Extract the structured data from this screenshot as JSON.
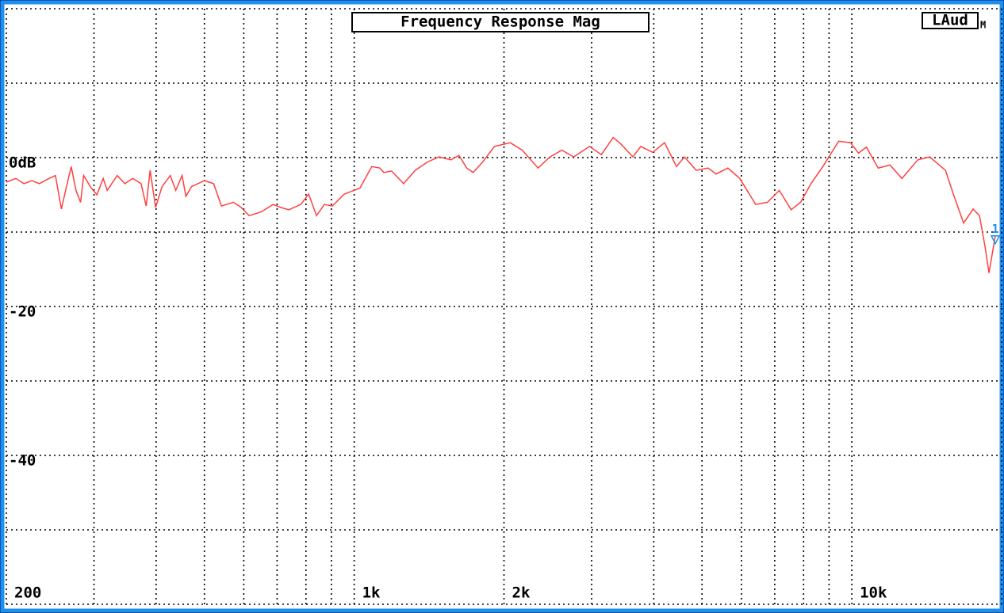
{
  "chart_data": {
    "type": "line",
    "title": "Frequency Response Mag",
    "badge": "LAud",
    "badge_sub": "M",
    "marker_label": "1",
    "xscale": "log",
    "xlim": [
      200,
      20000
    ],
    "ylim": [
      -60,
      20
    ],
    "grid": true,
    "xticks": [
      {
        "value": 200,
        "label": "200"
      },
      {
        "value": 300,
        "label": null
      },
      {
        "value": 400,
        "label": null
      },
      {
        "value": 500,
        "label": null
      },
      {
        "value": 600,
        "label": null
      },
      {
        "value": 700,
        "label": null
      },
      {
        "value": 800,
        "label": null
      },
      {
        "value": 900,
        "label": null
      },
      {
        "value": 1000,
        "label": "1k"
      },
      {
        "value": 2000,
        "label": "2k"
      },
      {
        "value": 3000,
        "label": null
      },
      {
        "value": 4000,
        "label": null
      },
      {
        "value": 5000,
        "label": null
      },
      {
        "value": 6000,
        "label": null
      },
      {
        "value": 7000,
        "label": null
      },
      {
        "value": 8000,
        "label": null
      },
      {
        "value": 9000,
        "label": null
      },
      {
        "value": 10000,
        "label": "10k"
      },
      {
        "value": 20000,
        "label": null
      }
    ],
    "yticks": [
      {
        "value": 20,
        "label": null
      },
      {
        "value": 10,
        "label": null
      },
      {
        "value": 0,
        "label": "0dB"
      },
      {
        "value": -10,
        "label": null
      },
      {
        "value": -20,
        "label": "-20"
      },
      {
        "value": -30,
        "label": null
      },
      {
        "value": -40,
        "label": "-40"
      },
      {
        "value": -50,
        "label": null
      },
      {
        "value": -60,
        "label": null
      }
    ],
    "series": [
      {
        "color": "#ff4040",
        "x": [
          200,
          209,
          217,
          225,
          233,
          242,
          251,
          258,
          265,
          270,
          276,
          282,
          286,
          295,
          304,
          313,
          319,
          334,
          346,
          359,
          373,
          382,
          389,
          399,
          411,
          427,
          438,
          451,
          459,
          471,
          500,
          522,
          541,
          572,
          593,
          615,
          650,
          687,
          713,
          739,
          781,
          810,
          840,
          871,
          904,
          955,
          1027,
          1085,
          1126,
          1147,
          1189,
          1257,
          1327,
          1403,
          1481,
          1565,
          1624,
          1684,
          1734,
          1812,
          1914,
          2059,
          2176,
          2342,
          2474,
          2614,
          2761,
          2970,
          3138,
          3315,
          3438,
          3632,
          3767,
          3980,
          4205,
          4443,
          4608,
          4868,
          5143,
          5335,
          5636,
          5955,
          6409,
          6769,
          7151,
          7553,
          7893,
          8279,
          8747,
          9410,
          9941,
          10312,
          10697,
          11298,
          11936,
          12612,
          13571,
          14336,
          15426,
          15997,
          16777,
          17533,
          18053,
          18520,
          18865,
          19423
        ],
        "values": [
          -3.3,
          -2.8,
          -3.5,
          -3.1,
          -3.5,
          -2.9,
          -2.4,
          -6.9,
          -3.5,
          -1.2,
          -4.4,
          -6.0,
          -2.4,
          -3.9,
          -5.0,
          -2.8,
          -4.4,
          -2.4,
          -3.5,
          -2.8,
          -3.5,
          -6.5,
          -1.7,
          -6.7,
          -3.9,
          -2.4,
          -4.4,
          -2.4,
          -5.2,
          -3.9,
          -3.1,
          -3.5,
          -6.5,
          -6.0,
          -6.7,
          -7.8,
          -7.3,
          -6.3,
          -6.7,
          -7.0,
          -6.3,
          -4.9,
          -7.8,
          -6.3,
          -6.5,
          -4.9,
          -4.1,
          -1.2,
          -1.4,
          -2.0,
          -1.8,
          -3.5,
          -1.7,
          -0.6,
          0.1,
          -0.3,
          0.3,
          -1.4,
          -2.0,
          -0.6,
          1.5,
          2.0,
          1.0,
          -1.4,
          0.1,
          1.0,
          0.1,
          1.5,
          0.4,
          2.7,
          1.8,
          0.1,
          1.5,
          0.7,
          2.0,
          -1.2,
          0.1,
          -1.7,
          -1.4,
          -2.2,
          -1.4,
          -2.8,
          -6.3,
          -6.0,
          -4.4,
          -7.0,
          -6.0,
          -3.5,
          -1.2,
          2.2,
          2.0,
          0.6,
          1.4,
          -1.4,
          -1.0,
          -2.8,
          -0.3,
          0.1,
          -1.7,
          -4.9,
          -8.8,
          -6.9,
          -7.8,
          -11.9,
          -15.5,
          -10.5
        ]
      }
    ]
  }
}
